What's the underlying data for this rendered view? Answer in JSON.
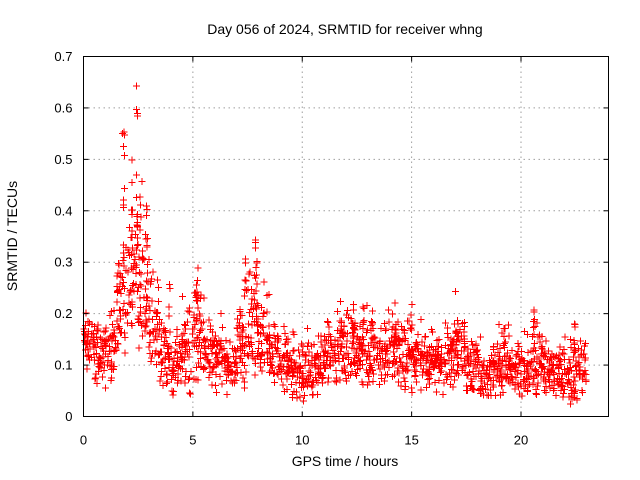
{
  "page": {
    "background_color": "#ffffff"
  },
  "chart_data": {
    "type": "scatter",
    "title": "Day 056 of 2024, SRMTID for receiver whng",
    "xlabel": "GPS time / hours",
    "ylabel": "SRMTID / TECUs",
    "xlim": [
      0,
      24
    ],
    "ylim": [
      0,
      0.7
    ],
    "xticks": [
      0,
      5,
      10,
      15,
      20
    ],
    "yticks": [
      0,
      0.1,
      0.2,
      0.3,
      0.4,
      0.5,
      0.6,
      0.7
    ],
    "xtick_labels": [
      "0",
      "5",
      "10",
      "15",
      "20"
    ],
    "ytick_labels": [
      "0",
      "0.1",
      "0.2",
      "0.3",
      "0.4",
      "0.5",
      "0.6",
      "0.7"
    ],
    "grid": true,
    "grid_color": "#9e9e9e",
    "border_color": "#000000",
    "legend": "none",
    "series_name": "SRMTID",
    "marker": {
      "shape": "plus",
      "color": "#ff0000",
      "size": 7
    },
    "x_data_range": [
      0,
      23.0
    ],
    "notable_points": [
      {
        "x": 2.45,
        "y": 0.657
      },
      {
        "x": 1.83,
        "y": 0.615
      },
      {
        "x": 2.05,
        "y": 0.59
      },
      {
        "x": 2.35,
        "y": 0.585
      },
      {
        "x": 1.85,
        "y": 0.565
      },
      {
        "x": 2.65,
        "y": 0.47
      },
      {
        "x": 2.9,
        "y": 0.41
      },
      {
        "x": 7.9,
        "y": 0.345
      },
      {
        "x": 7.4,
        "y": 0.31
      },
      {
        "x": 5.2,
        "y": 0.3
      },
      {
        "x": 12.35,
        "y": 0.245
      },
      {
        "x": 17.05,
        "y": 0.245
      },
      {
        "x": 14.25,
        "y": 0.24
      },
      {
        "x": 20.6,
        "y": 0.21
      },
      {
        "x": 22.45,
        "y": 0.19
      },
      {
        "x": 10.0,
        "y": 0.028
      },
      {
        "x": 22.05,
        "y": 0.016
      }
    ],
    "envelope_bins_format": [
      "hour_start",
      "hour_end",
      "mean",
      "sd",
      "min",
      "max",
      "n_points"
    ],
    "envelope_bins": [
      [
        0.0,
        0.5,
        0.15,
        0.03,
        0.09,
        0.21,
        40
      ],
      [
        0.5,
        1.0,
        0.12,
        0.03,
        0.06,
        0.19,
        40
      ],
      [
        1.0,
        1.5,
        0.13,
        0.035,
        0.05,
        0.24,
        40
      ],
      [
        1.5,
        2.0,
        0.2,
        0.06,
        0.1,
        0.45,
        40
      ],
      [
        2.0,
        2.5,
        0.26,
        0.08,
        0.12,
        0.52,
        40
      ],
      [
        2.5,
        3.0,
        0.24,
        0.07,
        0.12,
        0.47,
        40
      ],
      [
        3.0,
        3.5,
        0.16,
        0.05,
        0.08,
        0.3,
        40
      ],
      [
        3.5,
        4.0,
        0.12,
        0.03,
        0.06,
        0.2,
        40
      ],
      [
        4.0,
        4.5,
        0.1,
        0.03,
        0.04,
        0.18,
        40
      ],
      [
        4.5,
        5.0,
        0.13,
        0.04,
        0.04,
        0.24,
        40
      ],
      [
        5.0,
        5.5,
        0.16,
        0.045,
        0.05,
        0.3,
        40
      ],
      [
        5.5,
        6.0,
        0.13,
        0.04,
        0.05,
        0.24,
        40
      ],
      [
        6.0,
        6.5,
        0.11,
        0.035,
        0.03,
        0.21,
        40
      ],
      [
        6.5,
        7.0,
        0.1,
        0.03,
        0.03,
        0.19,
        40
      ],
      [
        7.0,
        7.5,
        0.14,
        0.045,
        0.05,
        0.31,
        40
      ],
      [
        7.5,
        8.0,
        0.17,
        0.055,
        0.08,
        0.34,
        40
      ],
      [
        8.0,
        8.5,
        0.15,
        0.05,
        0.07,
        0.3,
        40
      ],
      [
        8.5,
        9.0,
        0.12,
        0.035,
        0.05,
        0.22,
        40
      ],
      [
        9.0,
        9.5,
        0.1,
        0.03,
        0.04,
        0.18,
        40
      ],
      [
        9.5,
        10.0,
        0.08,
        0.03,
        0.025,
        0.15,
        40
      ],
      [
        10.0,
        10.5,
        0.09,
        0.03,
        0.03,
        0.22,
        40
      ],
      [
        10.5,
        11.0,
        0.1,
        0.03,
        0.04,
        0.19,
        40
      ],
      [
        11.0,
        11.5,
        0.12,
        0.035,
        0.05,
        0.22,
        40
      ],
      [
        11.5,
        12.0,
        0.13,
        0.04,
        0.06,
        0.27,
        40
      ],
      [
        12.0,
        12.5,
        0.14,
        0.045,
        0.06,
        0.24,
        40
      ],
      [
        12.5,
        13.0,
        0.13,
        0.04,
        0.06,
        0.24,
        40
      ],
      [
        13.0,
        13.5,
        0.12,
        0.035,
        0.05,
        0.22,
        40
      ],
      [
        13.5,
        14.0,
        0.12,
        0.035,
        0.05,
        0.22,
        40
      ],
      [
        14.0,
        14.5,
        0.13,
        0.04,
        0.06,
        0.24,
        40
      ],
      [
        14.5,
        15.0,
        0.12,
        0.035,
        0.05,
        0.21,
        40
      ],
      [
        15.0,
        15.5,
        0.11,
        0.035,
        0.045,
        0.22,
        40
      ],
      [
        15.5,
        16.0,
        0.1,
        0.03,
        0.04,
        0.18,
        40
      ],
      [
        16.0,
        16.5,
        0.1,
        0.03,
        0.04,
        0.18,
        40
      ],
      [
        16.5,
        17.0,
        0.11,
        0.035,
        0.05,
        0.2,
        40
      ],
      [
        17.0,
        17.5,
        0.12,
        0.04,
        0.05,
        0.24,
        40
      ],
      [
        17.5,
        18.0,
        0.1,
        0.03,
        0.04,
        0.18,
        40
      ],
      [
        18.0,
        18.5,
        0.09,
        0.03,
        0.03,
        0.16,
        40
      ],
      [
        18.5,
        19.0,
        0.09,
        0.03,
        0.02,
        0.16,
        40
      ],
      [
        19.0,
        19.5,
        0.1,
        0.03,
        0.04,
        0.185,
        40
      ],
      [
        19.5,
        20.0,
        0.09,
        0.03,
        0.04,
        0.16,
        40
      ],
      [
        20.0,
        20.5,
        0.09,
        0.03,
        0.04,
        0.17,
        40
      ],
      [
        20.5,
        21.0,
        0.1,
        0.035,
        0.04,
        0.21,
        40
      ],
      [
        21.0,
        21.5,
        0.09,
        0.03,
        0.04,
        0.17,
        40
      ],
      [
        21.5,
        22.0,
        0.08,
        0.03,
        0.03,
        0.15,
        40
      ],
      [
        22.0,
        22.5,
        0.08,
        0.035,
        0.015,
        0.19,
        40
      ],
      [
        22.5,
        23.0,
        0.09,
        0.035,
        0.03,
        0.17,
        36
      ]
    ],
    "spikes_format": [
      "hour",
      "y_min",
      "y_max",
      "n_points"
    ],
    "spikes": [
      [
        1.83,
        0.25,
        0.615,
        14
      ],
      [
        2.2,
        0.25,
        0.52,
        8
      ],
      [
        2.45,
        0.3,
        0.657,
        12
      ],
      [
        2.62,
        0.2,
        0.47,
        8
      ],
      [
        2.9,
        0.2,
        0.41,
        8
      ],
      [
        3.95,
        0.15,
        0.27,
        5
      ],
      [
        5.2,
        0.15,
        0.3,
        9
      ],
      [
        7.4,
        0.15,
        0.31,
        9
      ],
      [
        7.9,
        0.18,
        0.345,
        12
      ],
      [
        9.6,
        0.12,
        0.22,
        4
      ],
      [
        11.8,
        0.15,
        0.27,
        6
      ],
      [
        12.35,
        0.15,
        0.245,
        9
      ],
      [
        12.8,
        0.14,
        0.245,
        7
      ],
      [
        14.25,
        0.13,
        0.24,
        9
      ],
      [
        15.0,
        0.12,
        0.22,
        5
      ],
      [
        17.05,
        0.12,
        0.245,
        8
      ],
      [
        19.25,
        0.1,
        0.185,
        6
      ],
      [
        20.6,
        0.1,
        0.21,
        8
      ],
      [
        22.45,
        0.08,
        0.19,
        8
      ]
    ],
    "seed": 56
  }
}
